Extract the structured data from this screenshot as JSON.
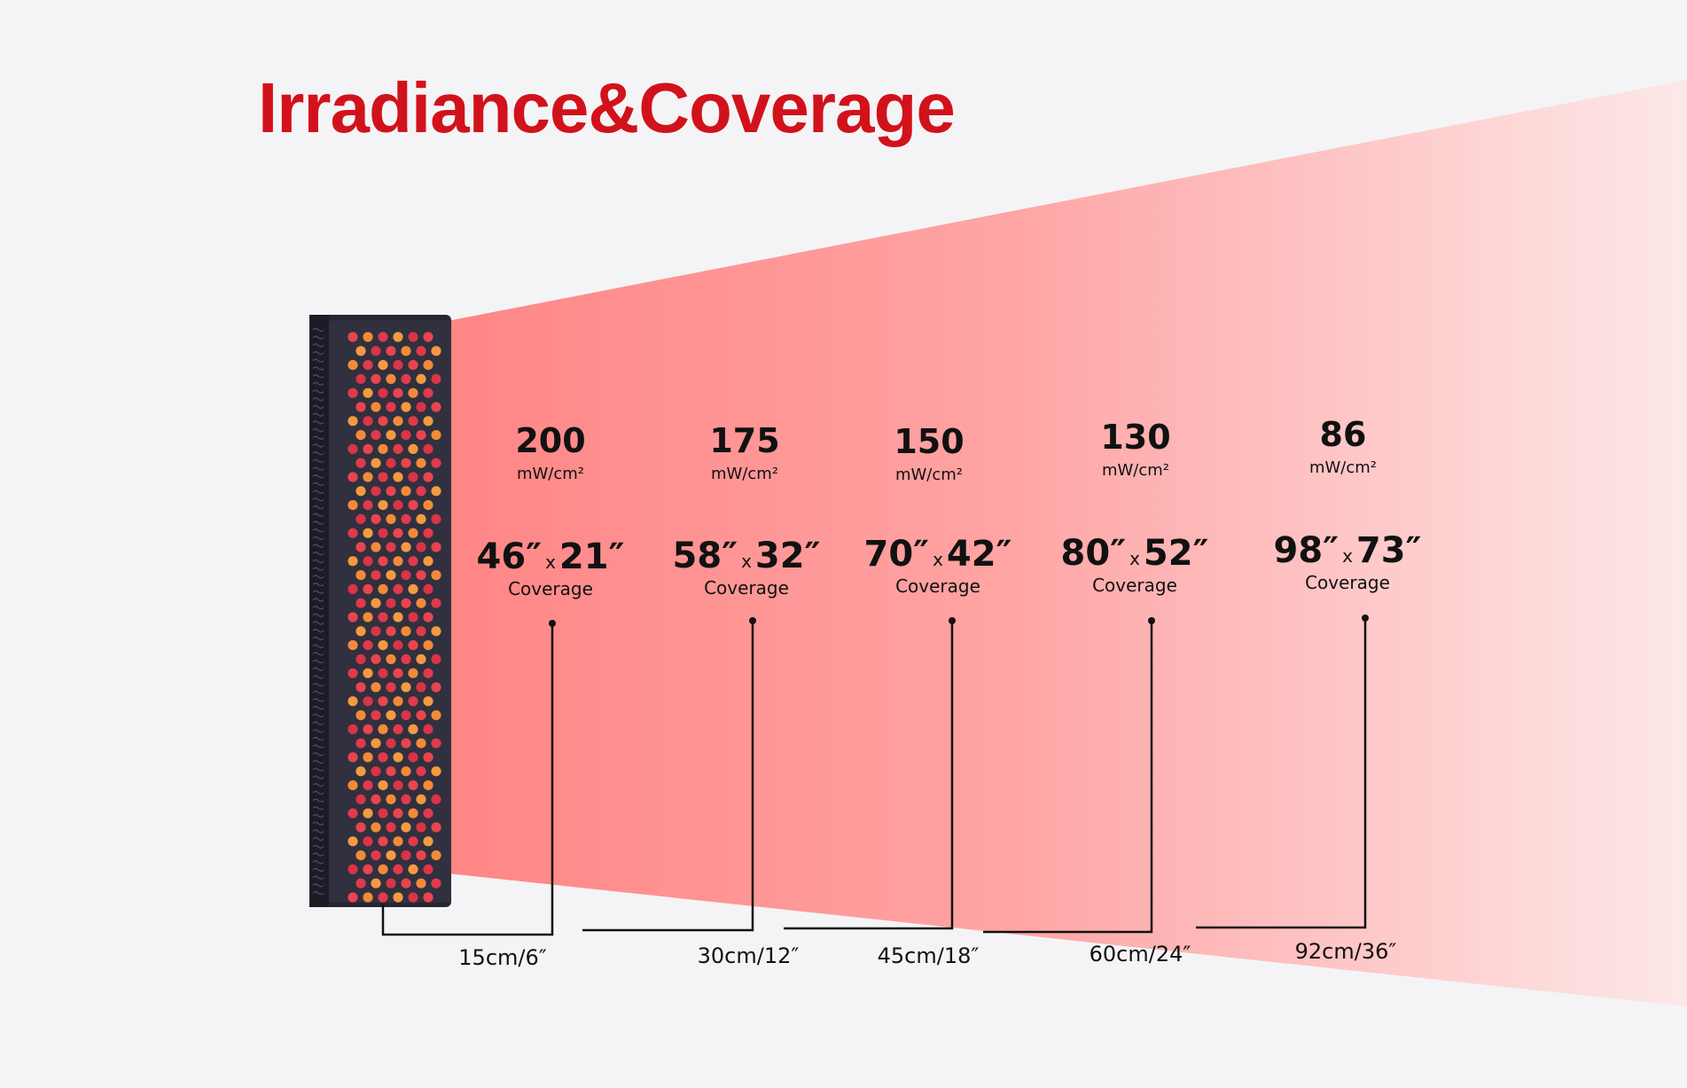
{
  "title": "Irradiance&Coverage",
  "colors": {
    "title": "#d2121b",
    "background": "#f4f4f6",
    "beam_start": "#ff8585",
    "beam_end": "#fde8e8",
    "panel": "#262632"
  },
  "icons": {
    "panel": "led-light-panel-image"
  },
  "columns": [
    {
      "irradiance": "200",
      "unit": "mW/cm²",
      "coverage_w": "46″",
      "coverage_x": "x",
      "coverage_h": "21″",
      "coverage_label": "Coverage",
      "distance": "15cm/6″"
    },
    {
      "irradiance": "175",
      "unit": "mW/cm²",
      "coverage_w": "58″",
      "coverage_x": "x",
      "coverage_h": "32″",
      "coverage_label": "Coverage",
      "distance": "30cm/12″"
    },
    {
      "irradiance": "150",
      "unit": "mW/cm²",
      "coverage_w": "70″",
      "coverage_x": "x",
      "coverage_h": "42″",
      "coverage_label": "Coverage",
      "distance": "45cm/18″"
    },
    {
      "irradiance": "130",
      "unit": "mW/cm²",
      "coverage_w": "80″",
      "coverage_x": "x",
      "coverage_h": "52″",
      "coverage_label": "Coverage",
      "distance": "60cm/24″"
    },
    {
      "irradiance": "86",
      "unit": "mW/cm²",
      "coverage_w": "98″",
      "coverage_x": "x",
      "coverage_h": "73″",
      "coverage_label": "Coverage",
      "distance": "92cm/36″"
    }
  ]
}
